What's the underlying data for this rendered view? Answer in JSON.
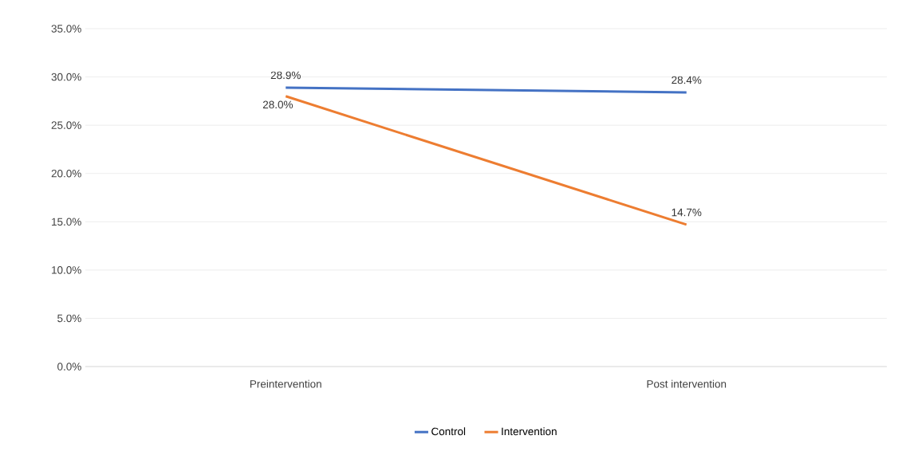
{
  "chart_data": {
    "type": "line",
    "categories": [
      "Preintervention",
      "Post intervention"
    ],
    "series": [
      {
        "name": "Control",
        "color": "#4472c4",
        "values": [
          28.9,
          28.4
        ],
        "value_labels": [
          "28.9%",
          "28.4%"
        ]
      },
      {
        "name": "Intervention",
        "color": "#ed7d31",
        "values": [
          28.0,
          14.7
        ],
        "value_labels": [
          "28.0%",
          "14.7%"
        ]
      }
    ],
    "ylim": [
      0,
      35
    ],
    "yticks": [
      {
        "value": 0,
        "label": "0.0%"
      },
      {
        "value": 5,
        "label": "5.0%"
      },
      {
        "value": 10,
        "label": "10.0%"
      },
      {
        "value": 15,
        "label": "15.0%"
      },
      {
        "value": 20,
        "label": "20.0%"
      },
      {
        "value": 25,
        "label": "25.0%"
      },
      {
        "value": 30,
        "label": "30.0%"
      },
      {
        "value": 35,
        "label": "35.0%"
      }
    ],
    "grid": "y",
    "legend": "bottom",
    "marker": "none"
  }
}
